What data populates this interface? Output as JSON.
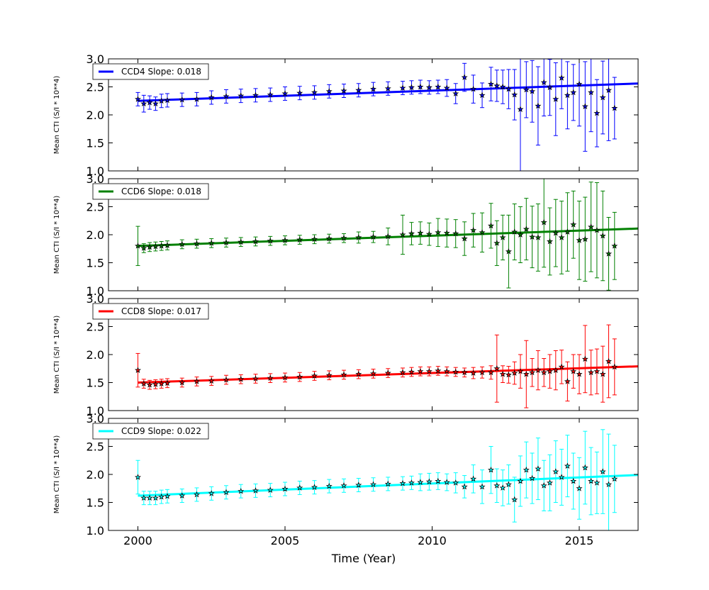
{
  "figure": {
    "xlabel": "Time (Year)"
  },
  "chart_data": [
    {
      "type": "scatter",
      "title": "",
      "xlabel": "",
      "ylabel": "Mean CTI (S/I * 10**4)",
      "xlim": [
        1999,
        2017
      ],
      "ylim": [
        1.0,
        3.0
      ],
      "xticks": [
        2000,
        2005,
        2010,
        2015
      ],
      "yticks": [
        1.0,
        1.5,
        2.0,
        2.5,
        3.0
      ],
      "xtick_labels": [
        "",
        "",
        "",
        ""
      ],
      "ytick_labels": [
        "1.0",
        "1.5",
        "2.0",
        "2.5",
        "3.0"
      ],
      "legend": {
        "label": "CCD4 Slope: 0.018",
        "placement": "top-left"
      },
      "color": "#0000ff",
      "fit": {
        "x": [
          2000,
          2017
        ],
        "y": [
          2.25,
          2.56
        ]
      },
      "series": [
        {
          "x": [
            2000.0,
            2000.2,
            2000.4,
            2000.6,
            2000.8,
            2001.0,
            2001.5,
            2002.0,
            2002.5,
            2003.0,
            2003.5,
            2004.0,
            2004.5,
            2005.0,
            2005.5,
            2006.0,
            2006.5,
            2007.0,
            2007.5,
            2008.0,
            2008.5,
            2009.0,
            2009.3,
            2009.6,
            2009.9,
            2010.2,
            2010.5,
            2010.8,
            2011.1,
            2011.4,
            2011.7,
            2012.0,
            2012.2,
            2012.4,
            2012.6,
            2012.8,
            2013.0,
            2013.2,
            2013.4,
            2013.6,
            2013.8,
            2014.0,
            2014.2,
            2014.4,
            2014.6,
            2014.8,
            2015.0,
            2015.2,
            2015.4,
            2015.6,
            2015.8,
            2016.0,
            2016.2
          ],
          "y": [
            2.28,
            2.2,
            2.22,
            2.2,
            2.25,
            2.26,
            2.27,
            2.28,
            2.31,
            2.33,
            2.34,
            2.35,
            2.36,
            2.38,
            2.39,
            2.4,
            2.42,
            2.43,
            2.44,
            2.46,
            2.47,
            2.48,
            2.49,
            2.5,
            2.49,
            2.5,
            2.48,
            2.38,
            2.67,
            2.46,
            2.35,
            2.55,
            2.52,
            2.5,
            2.46,
            2.36,
            2.1,
            2.45,
            2.42,
            2.16,
            2.58,
            2.49,
            2.28,
            2.66,
            2.35,
            2.4,
            2.55,
            2.15,
            2.4,
            2.03,
            2.31,
            2.44,
            2.12
          ],
          "err": [
            0.12,
            0.15,
            0.12,
            0.12,
            0.12,
            0.12,
            0.12,
            0.12,
            0.12,
            0.12,
            0.12,
            0.12,
            0.12,
            0.12,
            0.12,
            0.12,
            0.12,
            0.12,
            0.12,
            0.12,
            0.12,
            0.12,
            0.12,
            0.12,
            0.12,
            0.12,
            0.15,
            0.18,
            0.25,
            0.25,
            0.22,
            0.3,
            0.28,
            0.3,
            0.35,
            0.45,
            1.2,
            0.5,
            0.55,
            0.7,
            0.6,
            0.5,
            0.65,
            0.55,
            0.6,
            0.5,
            0.75,
            0.8,
            0.7,
            0.6,
            0.65,
            0.9,
            0.55
          ]
        }
      ]
    },
    {
      "type": "scatter",
      "title": "",
      "xlabel": "",
      "ylabel": "Mean CTI (S/I * 10**4)",
      "xlim": [
        1999,
        2017
      ],
      "ylim": [
        1.0,
        3.0
      ],
      "xticks": [
        2000,
        2005,
        2010,
        2015
      ],
      "yticks": [
        1.0,
        1.5,
        2.0,
        2.5,
        3.0
      ],
      "xtick_labels": [
        "",
        "",
        "",
        ""
      ],
      "ytick_labels": [
        "1.0",
        "1.5",
        "2.0",
        "2.5",
        "3.0"
      ],
      "legend": {
        "label": "CCD6 Slope: 0.018",
        "placement": "top-left"
      },
      "color": "#008000",
      "fit": {
        "x": [
          2000,
          2017
        ],
        "y": [
          1.8,
          2.11
        ]
      },
      "series": [
        {
          "x": [
            2000.0,
            2000.2,
            2000.4,
            2000.6,
            2000.8,
            2001.0,
            2001.5,
            2002.0,
            2002.5,
            2003.0,
            2003.5,
            2004.0,
            2004.5,
            2005.0,
            2005.5,
            2006.0,
            2006.5,
            2007.0,
            2007.5,
            2008.0,
            2008.5,
            2009.0,
            2009.3,
            2009.6,
            2009.9,
            2010.2,
            2010.5,
            2010.8,
            2011.1,
            2011.4,
            2011.7,
            2012.0,
            2012.2,
            2012.4,
            2012.6,
            2012.8,
            2013.0,
            2013.2,
            2013.4,
            2013.6,
            2013.8,
            2014.0,
            2014.2,
            2014.4,
            2014.6,
            2014.8,
            2015.0,
            2015.2,
            2015.4,
            2015.6,
            2015.8,
            2016.0,
            2016.2
          ],
          "y": [
            1.8,
            1.76,
            1.78,
            1.79,
            1.8,
            1.81,
            1.83,
            1.84,
            1.85,
            1.86,
            1.87,
            1.88,
            1.89,
            1.9,
            1.91,
            1.92,
            1.93,
            1.94,
            1.95,
            1.96,
            1.97,
            2.0,
            2.02,
            2.03,
            2.01,
            2.04,
            2.03,
            2.02,
            1.93,
            2.08,
            2.04,
            2.16,
            1.85,
            1.95,
            1.7,
            2.05,
            2.0,
            2.1,
            1.96,
            1.95,
            2.22,
            1.88,
            2.03,
            1.95,
            2.05,
            2.18,
            1.9,
            1.92,
            2.14,
            2.08,
            1.98,
            1.66,
            1.8
          ],
          "err": [
            0.35,
            0.08,
            0.08,
            0.08,
            0.08,
            0.08,
            0.08,
            0.08,
            0.08,
            0.08,
            0.08,
            0.08,
            0.08,
            0.08,
            0.08,
            0.08,
            0.08,
            0.08,
            0.1,
            0.1,
            0.15,
            0.35,
            0.2,
            0.2,
            0.2,
            0.25,
            0.25,
            0.25,
            0.3,
            0.3,
            0.35,
            0.4,
            0.4,
            0.4,
            0.65,
            0.5,
            0.5,
            0.55,
            0.55,
            0.6,
            0.8,
            0.6,
            0.6,
            0.65,
            0.7,
            0.6,
            0.7,
            0.75,
            0.8,
            0.85,
            0.8,
            0.65,
            0.6
          ]
        }
      ]
    },
    {
      "type": "scatter",
      "title": "",
      "xlabel": "",
      "ylabel": "Mean CTI (S/I * 10**4)",
      "xlim": [
        1999,
        2017
      ],
      "ylim": [
        1.0,
        3.0
      ],
      "xticks": [
        2000,
        2005,
        2010,
        2015
      ],
      "yticks": [
        1.0,
        1.5,
        2.0,
        2.5,
        3.0
      ],
      "xtick_labels": [
        "",
        "",
        "",
        ""
      ],
      "ytick_labels": [
        "1.0",
        "1.5",
        "2.0",
        "2.5",
        "3.0"
      ],
      "legend": {
        "label": "CCD8 Slope: 0.017",
        "placement": "top-left"
      },
      "color": "#ff0000",
      "fit": {
        "x": [
          2000,
          2017
        ],
        "y": [
          1.5,
          1.79
        ]
      },
      "series": [
        {
          "x": [
            2000.0,
            2000.2,
            2000.4,
            2000.6,
            2000.8,
            2001.0,
            2001.5,
            2002.0,
            2002.5,
            2003.0,
            2003.5,
            2004.0,
            2004.5,
            2005.0,
            2005.5,
            2006.0,
            2006.5,
            2007.0,
            2007.5,
            2008.0,
            2008.5,
            2009.0,
            2009.3,
            2009.6,
            2009.9,
            2010.2,
            2010.5,
            2010.8,
            2011.1,
            2011.4,
            2011.7,
            2012.0,
            2012.2,
            2012.4,
            2012.6,
            2012.8,
            2013.0,
            2013.2,
            2013.4,
            2013.6,
            2013.8,
            2014.0,
            2014.2,
            2014.4,
            2014.6,
            2014.8,
            2015.0,
            2015.2,
            2015.4,
            2015.6,
            2015.8,
            2016.0,
            2016.2
          ],
          "y": [
            1.72,
            1.48,
            1.46,
            1.47,
            1.48,
            1.49,
            1.5,
            1.52,
            1.53,
            1.55,
            1.56,
            1.57,
            1.58,
            1.59,
            1.6,
            1.62,
            1.63,
            1.64,
            1.65,
            1.66,
            1.67,
            1.68,
            1.69,
            1.7,
            1.7,
            1.71,
            1.7,
            1.69,
            1.68,
            1.67,
            1.68,
            1.68,
            1.75,
            1.65,
            1.64,
            1.67,
            1.7,
            1.65,
            1.68,
            1.72,
            1.68,
            1.7,
            1.72,
            1.78,
            1.52,
            1.7,
            1.65,
            1.92,
            1.68,
            1.7,
            1.65,
            1.88,
            1.78
          ],
          "err": [
            0.3,
            0.08,
            0.08,
            0.08,
            0.08,
            0.08,
            0.08,
            0.08,
            0.08,
            0.08,
            0.08,
            0.08,
            0.08,
            0.08,
            0.08,
            0.08,
            0.08,
            0.08,
            0.08,
            0.08,
            0.08,
            0.08,
            0.08,
            0.08,
            0.08,
            0.08,
            0.08,
            0.08,
            0.08,
            0.1,
            0.1,
            0.12,
            0.6,
            0.15,
            0.15,
            0.2,
            0.3,
            0.6,
            0.25,
            0.35,
            0.25,
            0.3,
            0.35,
            0.3,
            0.35,
            0.3,
            0.35,
            0.6,
            0.4,
            0.4,
            0.5,
            0.65,
            0.5
          ]
        }
      ]
    },
    {
      "type": "scatter",
      "title": "",
      "xlabel": "Time (Year)",
      "ylabel": "Mean CTI (S/I * 10**4)",
      "xlim": [
        1999,
        2017
      ],
      "ylim": [
        1.0,
        3.0
      ],
      "xticks": [
        2000,
        2005,
        2010,
        2015
      ],
      "yticks": [
        1.0,
        1.5,
        2.0,
        2.5,
        3.0
      ],
      "xtick_labels": [
        "2000",
        "2005",
        "2010",
        "2015"
      ],
      "ytick_labels": [
        "1.0",
        "1.5",
        "2.0",
        "2.5",
        "3.0"
      ],
      "legend": {
        "label": "CCD9 Slope: 0.022",
        "placement": "top-left"
      },
      "color": "#00ffff",
      "fit": {
        "x": [
          2000,
          2017
        ],
        "y": [
          1.62,
          1.99
        ]
      },
      "series": [
        {
          "x": [
            2000.0,
            2000.2,
            2000.4,
            2000.6,
            2000.8,
            2001.0,
            2001.5,
            2002.0,
            2002.5,
            2003.0,
            2003.5,
            2004.0,
            2004.5,
            2005.0,
            2005.5,
            2006.0,
            2006.5,
            2007.0,
            2007.5,
            2008.0,
            2008.5,
            2009.0,
            2009.3,
            2009.6,
            2009.9,
            2010.2,
            2010.5,
            2010.8,
            2011.1,
            2011.4,
            2011.7,
            2012.0,
            2012.2,
            2012.4,
            2012.6,
            2012.8,
            2013.0,
            2013.2,
            2013.4,
            2013.6,
            2013.8,
            2014.0,
            2014.2,
            2014.4,
            2014.6,
            2014.8,
            2015.0,
            2015.2,
            2015.4,
            2015.6,
            2015.8,
            2016.0,
            2016.2
          ],
          "y": [
            1.95,
            1.58,
            1.58,
            1.58,
            1.6,
            1.61,
            1.62,
            1.64,
            1.66,
            1.68,
            1.7,
            1.71,
            1.72,
            1.74,
            1.76,
            1.77,
            1.79,
            1.8,
            1.81,
            1.82,
            1.83,
            1.84,
            1.85,
            1.86,
            1.87,
            1.88,
            1.86,
            1.85,
            1.78,
            1.92,
            1.78,
            2.08,
            1.8,
            1.76,
            1.82,
            1.55,
            1.88,
            2.08,
            1.93,
            2.1,
            1.8,
            1.85,
            2.05,
            1.95,
            2.15,
            1.88,
            1.75,
            2.12,
            1.88,
            1.85,
            2.05,
            1.82,
            1.92
          ],
          "err": [
            0.3,
            0.12,
            0.12,
            0.12,
            0.12,
            0.12,
            0.12,
            0.12,
            0.12,
            0.12,
            0.12,
            0.12,
            0.12,
            0.12,
            0.12,
            0.12,
            0.12,
            0.12,
            0.12,
            0.12,
            0.12,
            0.12,
            0.12,
            0.15,
            0.15,
            0.15,
            0.15,
            0.18,
            0.2,
            0.25,
            0.3,
            0.42,
            0.3,
            0.32,
            0.35,
            0.4,
            0.45,
            0.5,
            0.45,
            0.55,
            0.45,
            0.5,
            0.55,
            0.5,
            0.55,
            0.5,
            0.55,
            0.65,
            0.6,
            0.55,
            0.75,
            0.9,
            0.6
          ]
        }
      ]
    }
  ]
}
